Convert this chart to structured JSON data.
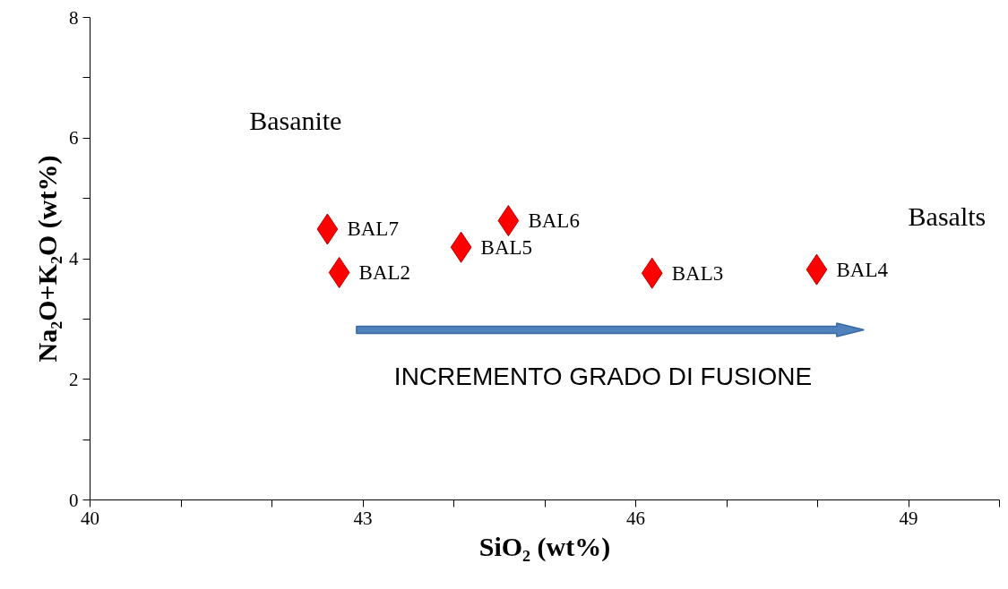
{
  "chart_data": {
    "type": "scatter",
    "xlabel": "SiO₂ (wt%)",
    "ylabel": "Na₂O+K₂O (wt%)",
    "x": [
      42.61,
      42.74,
      44.08,
      44.6,
      46.18,
      47.99
    ],
    "values": [
      4.49,
      3.77,
      4.19,
      4.63,
      3.76,
      3.82
    ],
    "color": "#ff0000",
    "marker": "diamond",
    "xlim": [
      40,
      50
    ],
    "ylim": [
      0,
      8
    ],
    "xticks": [
      40,
      {
        "value": 41,
        "label": null
      },
      {
        "value": 42,
        "label": null
      },
      43,
      {
        "value": 44,
        "label": null
      },
      {
        "value": 45,
        "label": null
      },
      46,
      {
        "value": 47,
        "label": null
      },
      {
        "value": 48,
        "label": null
      },
      49,
      {
        "value": 50,
        "label": null
      }
    ],
    "yticks": [
      0,
      {
        "value": 1,
        "label": null
      },
      2,
      {
        "value": 3,
        "label": null
      },
      4,
      {
        "value": 5,
        "label": null
      },
      6,
      {
        "value": 7,
        "label": null
      },
      8
    ],
    "grid": false,
    "annotations": [
      {
        "text": "BAL7",
        "x": 42.61,
        "y": 4.49
      },
      {
        "text": "BAL2",
        "x": 42.74,
        "y": 3.77
      },
      {
        "text": "BAL5",
        "x": 44.08,
        "y": 4.19
      },
      {
        "text": "BAL6",
        "x": 44.6,
        "y": 4.63
      },
      {
        "text": "BAL3",
        "x": 46.18,
        "y": 3.76
      },
      {
        "text": "BAL4",
        "x": 47.99,
        "y": 3.82
      },
      "Basanite",
      "Basalts",
      "INCREMENTO GRADO DI FUSIONE"
    ]
  }
}
